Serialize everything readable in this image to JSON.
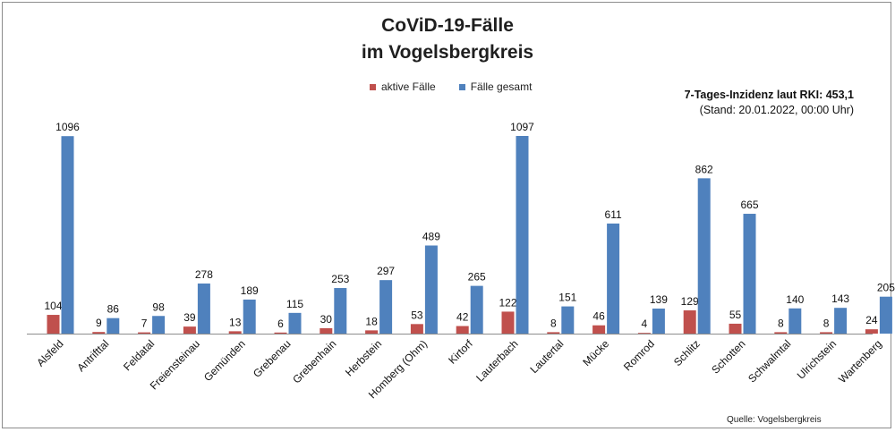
{
  "chart_data": {
    "type": "bar",
    "title_line1": "CoViD-19-Fälle",
    "title_line2": "im Vogelsbergkreis",
    "categories": [
      "Alsfeld",
      "Antrifttal",
      "Feldatal",
      "Freiensteinau",
      "Gemünden",
      "Grebenau",
      "Grebenhain",
      "Herbstein",
      "Homberg (Ohm)",
      "Kirtorf",
      "Lauterbach",
      "Lautertal",
      "Mücke",
      "Romrod",
      "Schlitz",
      "Schotten",
      "Schwalmtal",
      "Ulrichstein",
      "Wartenberg"
    ],
    "series": [
      {
        "name": "aktive Fälle",
        "color": "#c0504d",
        "values": [
          104,
          9,
          7,
          39,
          13,
          6,
          30,
          18,
          53,
          42,
          122,
          8,
          46,
          4,
          129,
          55,
          8,
          8,
          24
        ]
      },
      {
        "name": "Fälle gesamt",
        "color": "#4f81bd",
        "values": [
          1096,
          86,
          98,
          278,
          189,
          115,
          253,
          297,
          489,
          265,
          1097,
          151,
          611,
          139,
          862,
          665,
          140,
          143,
          205
        ]
      }
    ],
    "ylim": [
      0,
      1100
    ],
    "grid": false,
    "legend_position": "top-center",
    "incidence_label": "7-Tages-Inzidenz laut RKI: 453,1",
    "incidence_stand": "(Stand: 20.01.2022, 00:00 Uhr)",
    "source": "Quelle: Vogelsbergkreis"
  }
}
